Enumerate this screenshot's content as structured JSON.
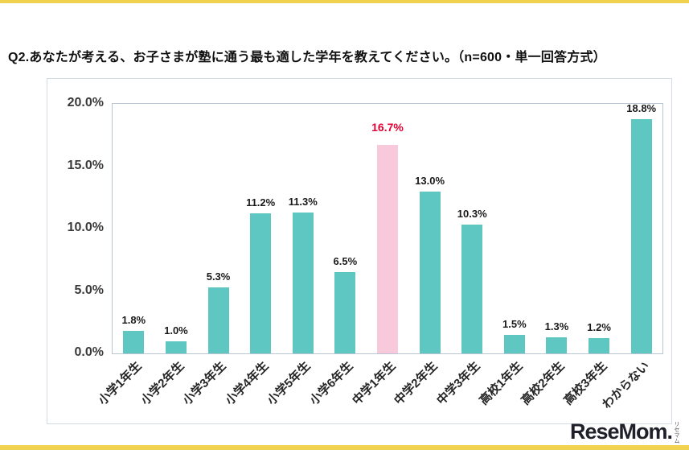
{
  "page": {
    "title": "Q2.あなたが考える、お子さまが塾に通う最も適した学年を教えてください。（n=600・単一回答方式）",
    "accent_color": "#f0d24f",
    "logo": {
      "text": "ReseMom.",
      "sub": "リセマム"
    }
  },
  "chart_data": {
    "type": "bar",
    "title": "",
    "categories": [
      "小学1年生",
      "小学2年生",
      "小学3年生",
      "小学4年生",
      "小学5年生",
      "小学6年生",
      "中学1年生",
      "中学2年生",
      "中学3年生",
      "高校1年生",
      "高校2年生",
      "高校3年生",
      "わからない"
    ],
    "values": [
      1.8,
      1.0,
      5.3,
      11.2,
      11.3,
      6.5,
      16.7,
      13.0,
      10.3,
      1.5,
      1.3,
      1.2,
      18.8
    ],
    "value_labels": [
      "1.8%",
      "1.0%",
      "5.3%",
      "11.2%",
      "11.3%",
      "6.5%",
      "16.7%",
      "13.0%",
      "10.3%",
      "1.5%",
      "1.3%",
      "1.2%",
      "18.8%"
    ],
    "highlight_index": 6,
    "xlabel": "",
    "ylabel": "",
    "ylim": [
      0,
      20
    ],
    "yticks": [
      0,
      5,
      10,
      15,
      20
    ],
    "ytick_labels": [
      "0.0%",
      "5.0%",
      "10.0%",
      "15.0%",
      "20.0%"
    ],
    "grid": false,
    "legend": false,
    "colors": {
      "bar": "#5ec7c1",
      "highlight_bar": "#f8c9da",
      "value_label": "#1a1a1a",
      "highlight_value_label": "#e60033",
      "ytick_label": "#3a3a3a",
      "xtick_label": "#262626"
    }
  }
}
